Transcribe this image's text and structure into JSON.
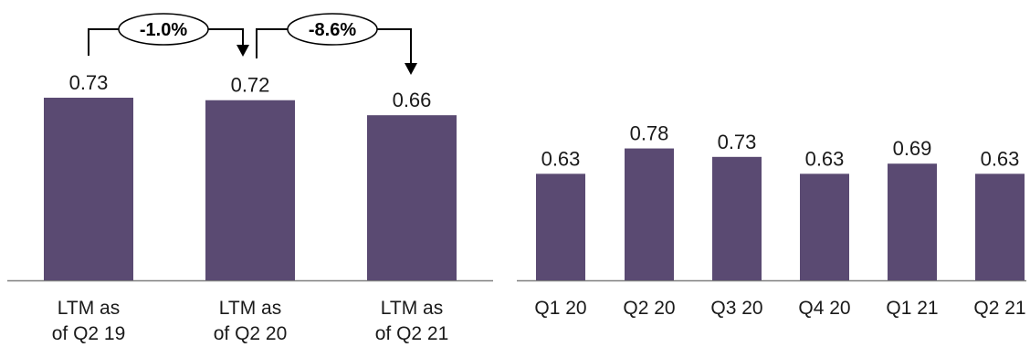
{
  "colors": {
    "bar": "#5a4a72",
    "axis": "#7f7f7f",
    "bracket": "#000000"
  },
  "chart_data": [
    {
      "type": "bar",
      "categories": [
        [
          "LTM as",
          "of Q2 19"
        ],
        [
          "LTM as",
          "of Q2 20"
        ],
        [
          "LTM as",
          "of Q2 21"
        ]
      ],
      "values": [
        0.73,
        0.72,
        0.66
      ],
      "value_labels": [
        "0.73",
        "0.72",
        "0.66"
      ],
      "ylim": [
        0,
        0.73
      ],
      "grid": false,
      "changes": [
        {
          "from": 0,
          "to": 1,
          "label": "-1.0%"
        },
        {
          "from": 1,
          "to": 2,
          "label": "-8.6%"
        }
      ]
    },
    {
      "type": "bar",
      "categories": [
        "Q1 20",
        "Q2 20",
        "Q3 20",
        "Q4 20",
        "Q1 21",
        "Q2 21"
      ],
      "values": [
        0.63,
        0.78,
        0.73,
        0.63,
        0.69,
        0.63
      ],
      "value_labels": [
        "0.63",
        "0.78",
        "0.73",
        "0.63",
        "0.69",
        "0.63"
      ],
      "ylim": [
        0,
        1.08
      ],
      "grid": false
    }
  ]
}
